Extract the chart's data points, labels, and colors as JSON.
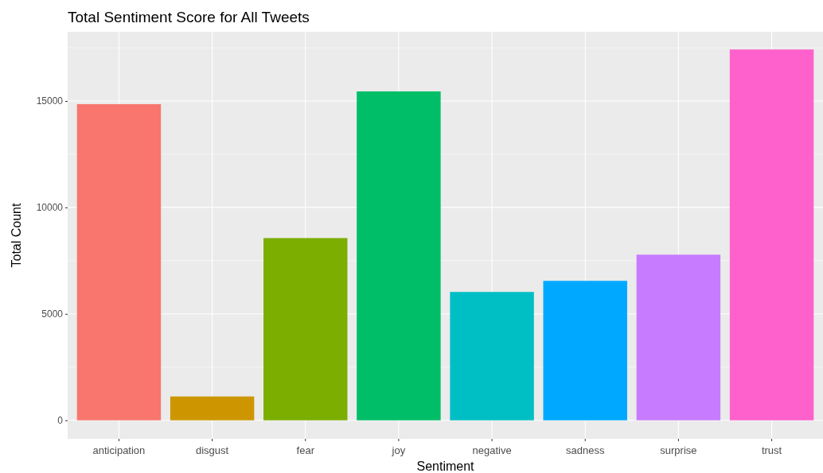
{
  "chart_data": {
    "type": "bar",
    "title": "Total Sentiment Score for All Tweets",
    "xlabel": "Sentiment",
    "ylabel": "Total Count",
    "categories": [
      "anticipation",
      "disgust",
      "fear",
      "joy",
      "negative",
      "sadness",
      "surprise",
      "trust"
    ],
    "values": [
      14850,
      1120,
      8560,
      15450,
      6030,
      6550,
      7780,
      17420
    ],
    "colors": [
      "#f8766d",
      "#cd9600",
      "#7cae00",
      "#00be67",
      "#00bfc4",
      "#00a9ff",
      "#c77cff",
      "#ff61cc"
    ],
    "ylim": [
      -870,
      18250
    ],
    "yticks": [
      0,
      5000,
      10000,
      15000
    ],
    "grid": true
  }
}
